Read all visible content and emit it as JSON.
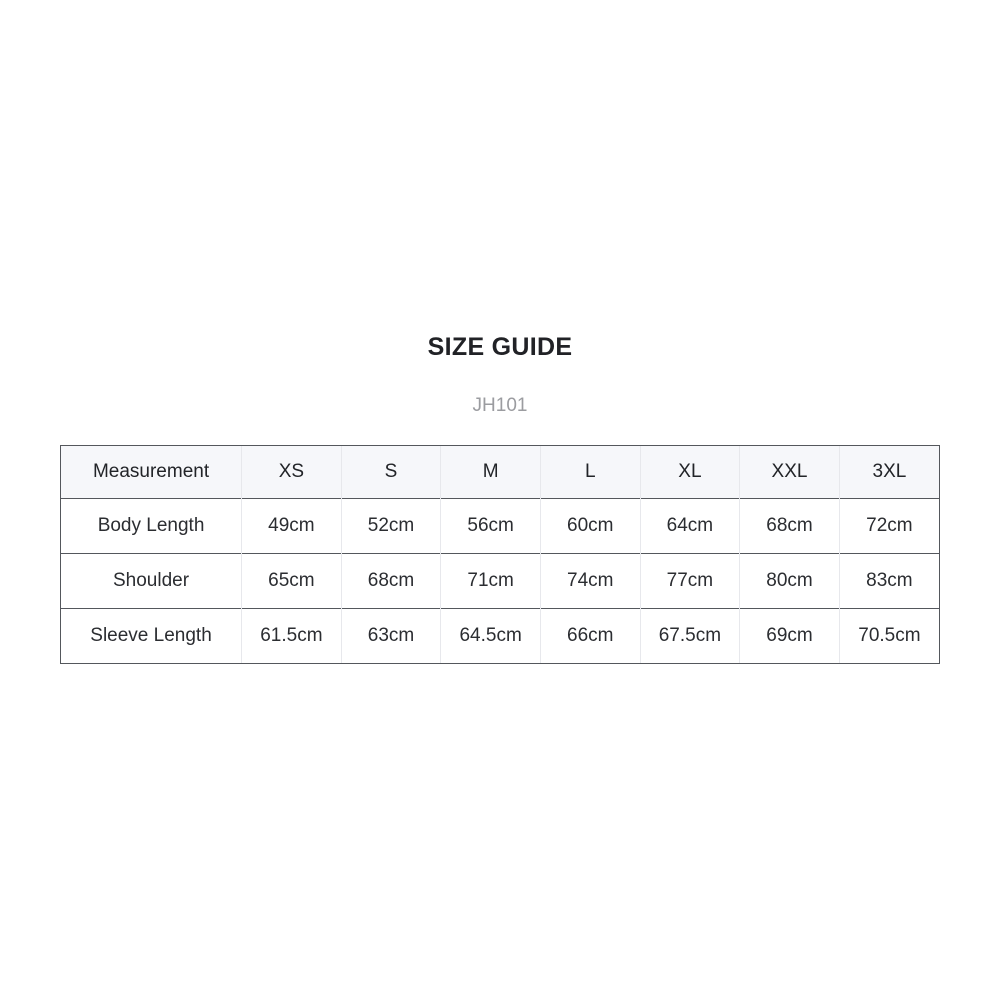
{
  "header": {
    "title": "SIZE GUIDE",
    "subtitle": "JH101"
  },
  "table": {
    "columns": [
      "Measurement",
      "XS",
      "S",
      "M",
      "L",
      "XL",
      "XXL",
      "3XL"
    ],
    "rows": [
      {
        "label": "Body Length",
        "values": [
          "49cm",
          "52cm",
          "56cm",
          "60cm",
          "64cm",
          "68cm",
          "72cm"
        ]
      },
      {
        "label": "Shoulder",
        "values": [
          "65cm",
          "68cm",
          "71cm",
          "74cm",
          "77cm",
          "80cm",
          "83cm"
        ]
      },
      {
        "label": "Sleeve Length",
        "values": [
          "61.5cm",
          "63cm",
          "64.5cm",
          "66cm",
          "67.5cm",
          "69cm",
          "70.5cm"
        ]
      }
    ],
    "unit": "cm"
  },
  "colors": {
    "title_text": "#212226",
    "subtitle_text": "#9b9ca0",
    "header_row_bg": "#f6f7fa",
    "dark_border": "#54575c",
    "light_divider": "#e7e8ec",
    "body_text": "#2b2d31",
    "page_bg": "#ffffff"
  }
}
